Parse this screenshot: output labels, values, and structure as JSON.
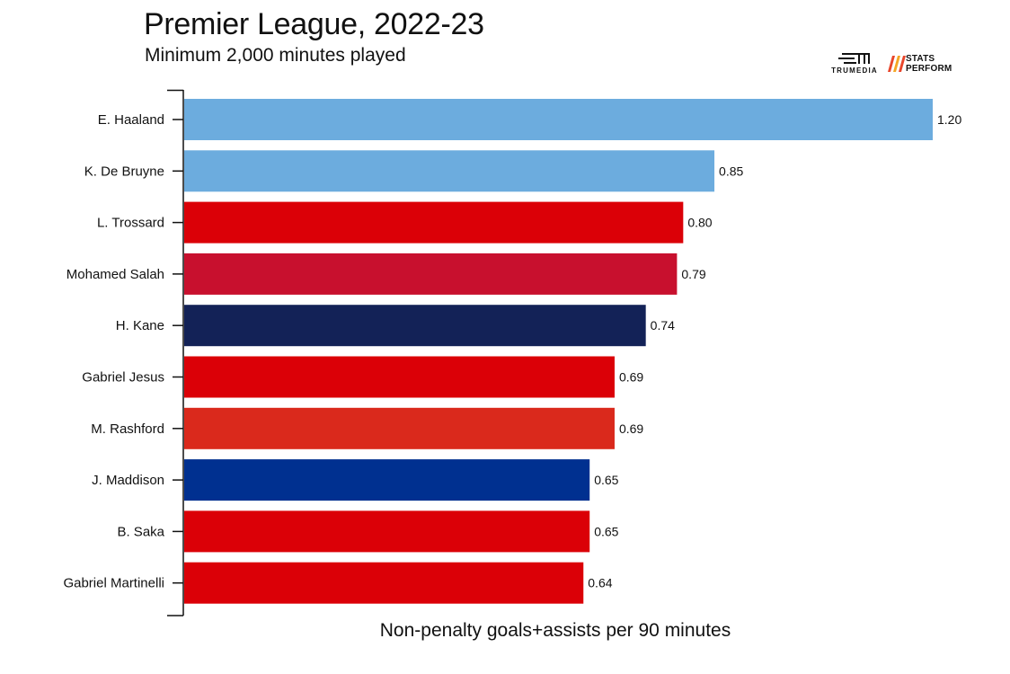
{
  "header": {
    "title": "Premier League, 2022-23",
    "subtitle": "Minimum 2,000 minutes played"
  },
  "logos": {
    "trumedia": "TRUMEDIA",
    "stats_perform_line1": "STATS",
    "stats_perform_line2": "PERFORM"
  },
  "chart_data": {
    "type": "bar",
    "orientation": "horizontal",
    "title": "Premier League, 2022-23",
    "subtitle": "Minimum 2,000 minutes played",
    "xlabel": "Non-penalty goals+assists per 90 minutes",
    "ylabel": "",
    "xlim": [
      0,
      1.2
    ],
    "grid": false,
    "legend": "none",
    "categories": [
      "E. Haaland",
      "K. De Bruyne",
      "L. Trossard",
      "Mohamed Salah",
      "H. Kane",
      "Gabriel Jesus",
      "M. Rashford",
      "J. Maddison",
      "B. Saka",
      "Gabriel Martinelli"
    ],
    "values": [
      1.2,
      0.85,
      0.8,
      0.79,
      0.74,
      0.69,
      0.69,
      0.65,
      0.65,
      0.64
    ],
    "value_labels": [
      "1.20",
      "0.85",
      "0.80",
      "0.79",
      "0.74",
      "0.69",
      "0.69",
      "0.65",
      "0.65",
      "0.64"
    ],
    "colors": [
      "#6CACDE",
      "#6CACDE",
      "#DB0007",
      "#C8102E",
      "#132257",
      "#DB0007",
      "#DA291C",
      "#003090",
      "#DB0007",
      "#DB0007"
    ]
  }
}
